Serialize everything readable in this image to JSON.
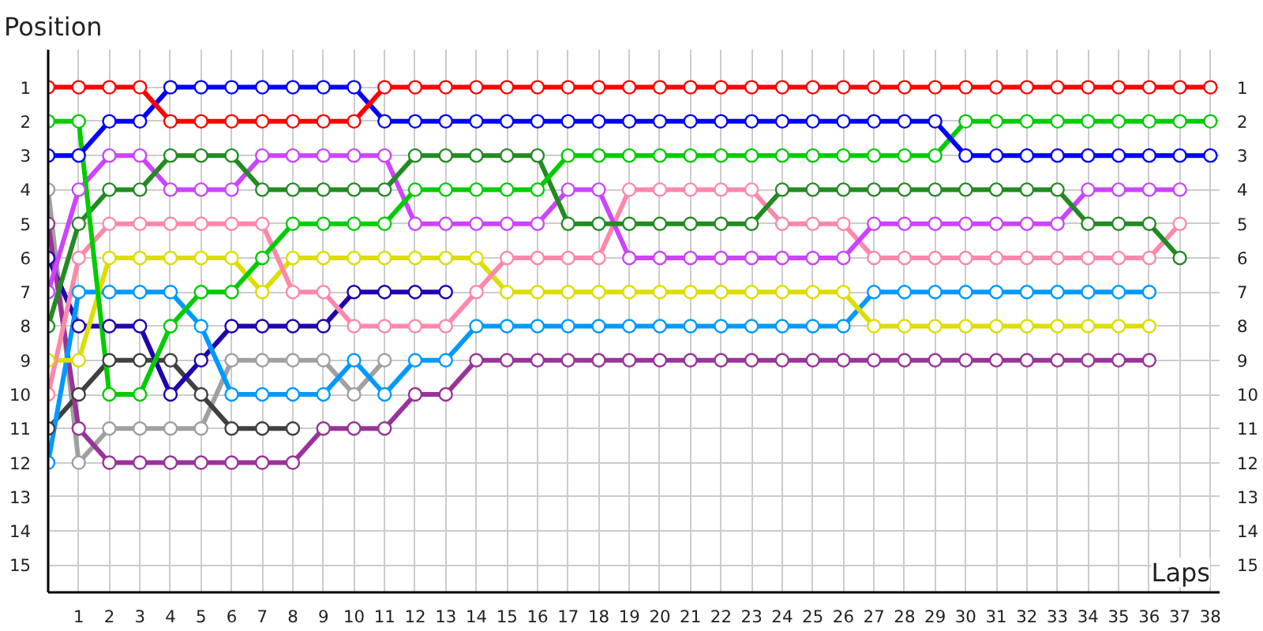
{
  "chart_data": {
    "type": "line",
    "xlabel": "Laps",
    "ylabel": "Position",
    "x": [
      0,
      1,
      2,
      3,
      4,
      5,
      6,
      7,
      8,
      9,
      10,
      11,
      12,
      13,
      14,
      15,
      16,
      17,
      18,
      19,
      20,
      21,
      22,
      23,
      24,
      25,
      26,
      27,
      28,
      29,
      30,
      31,
      32,
      33,
      34,
      35,
      36,
      37,
      38
    ],
    "xlim": [
      0,
      38.3
    ],
    "xticks": [
      1,
      2,
      3,
      4,
      5,
      6,
      7,
      8,
      9,
      10,
      11,
      12,
      13,
      14,
      15,
      16,
      17,
      18,
      19,
      20,
      21,
      22,
      23,
      24,
      25,
      26,
      27,
      28,
      29,
      30,
      31,
      32,
      33,
      34,
      35,
      36,
      37,
      38
    ],
    "ylim": [
      15.8,
      -0.1
    ],
    "yticks": [
      1,
      2,
      3,
      4,
      5,
      6,
      7,
      8,
      9,
      10,
      11,
      12,
      13,
      14,
      15
    ],
    "y2lim": [
      15.8,
      -0.1
    ],
    "y2ticks": [
      1,
      2,
      3,
      4,
      5,
      6,
      7,
      8,
      9,
      10,
      11,
      12,
      13,
      14,
      15
    ],
    "grid": true,
    "marker": "circle",
    "line_style": "solid",
    "series": [
      {
        "color": "#a0a0a0",
        "values": [
          4,
          12,
          11,
          11,
          11,
          11,
          9,
          9,
          9,
          9,
          10,
          9,
          null,
          null,
          null,
          null,
          null,
          null,
          null,
          null,
          null,
          null,
          null,
          null,
          null,
          null,
          null,
          null,
          null,
          null,
          null,
          null,
          null,
          null,
          null,
          null,
          null,
          null,
          null
        ]
      },
      {
        "color": "#404040",
        "values": [
          11,
          10,
          9,
          9,
          9,
          10,
          11,
          11,
          11,
          null,
          null,
          null,
          null,
          null,
          null,
          null,
          null,
          null,
          null,
          null,
          null,
          null,
          null,
          null,
          null,
          null,
          null,
          null,
          null,
          null,
          null,
          null,
          null,
          null,
          null,
          null,
          null,
          null,
          null
        ]
      },
      {
        "color": "#2200b0",
        "values": [
          6,
          8,
          8,
          8,
          10,
          9,
          8,
          8,
          8,
          8,
          7,
          7,
          7,
          7,
          null,
          null,
          null,
          null,
          null,
          null,
          null,
          null,
          null,
          null,
          null,
          null,
          null,
          null,
          null,
          null,
          null,
          null,
          null,
          null,
          null,
          null,
          null,
          null,
          null
        ]
      },
      {
        "color": "#993399",
        "values": [
          5,
          11,
          12,
          12,
          12,
          12,
          12,
          12,
          12,
          11,
          11,
          11,
          10,
          10,
          9,
          9,
          9,
          9,
          9,
          9,
          9,
          9,
          9,
          9,
          9,
          9,
          9,
          9,
          9,
          9,
          9,
          9,
          9,
          9,
          9,
          9,
          9,
          null,
          null
        ]
      },
      {
        "color": "#0099ff",
        "values": [
          12,
          7,
          7,
          7,
          7,
          8,
          10,
          10,
          10,
          10,
          9,
          10,
          9,
          9,
          8,
          8,
          8,
          8,
          8,
          8,
          8,
          8,
          8,
          8,
          8,
          8,
          8,
          7,
          7,
          7,
          7,
          7,
          7,
          7,
          7,
          7,
          7,
          null,
          null
        ]
      },
      {
        "color": "#dddd00",
        "values": [
          9,
          9,
          6,
          6,
          6,
          6,
          6,
          7,
          6,
          6,
          6,
          6,
          6,
          6,
          6,
          7,
          7,
          7,
          7,
          7,
          7,
          7,
          7,
          7,
          7,
          7,
          7,
          8,
          8,
          8,
          8,
          8,
          8,
          8,
          8,
          8,
          8,
          null,
          null
        ]
      },
      {
        "color": "#ff88aa",
        "values": [
          10,
          6,
          5,
          5,
          5,
          5,
          5,
          5,
          7,
          7,
          8,
          8,
          8,
          8,
          7,
          6,
          6,
          6,
          6,
          4,
          4,
          4,
          4,
          4,
          5,
          5,
          5,
          6,
          6,
          6,
          6,
          6,
          6,
          6,
          6,
          6,
          6,
          5,
          null
        ]
      },
      {
        "color": "#cc44ff",
        "values": [
          7,
          4,
          3,
          3,
          4,
          4,
          4,
          3,
          3,
          3,
          3,
          3,
          5,
          5,
          5,
          5,
          5,
          4,
          4,
          6,
          6,
          6,
          6,
          6,
          6,
          6,
          6,
          5,
          5,
          5,
          5,
          5,
          5,
          5,
          4,
          4,
          4,
          4,
          null
        ]
      },
      {
        "color": "#228b22",
        "values": [
          8,
          5,
          4,
          4,
          3,
          3,
          3,
          4,
          4,
          4,
          4,
          4,
          3,
          3,
          3,
          3,
          3,
          5,
          5,
          5,
          5,
          5,
          5,
          5,
          4,
          4,
          4,
          4,
          4,
          4,
          4,
          4,
          4,
          4,
          5,
          5,
          5,
          6,
          null
        ]
      },
      {
        "color": "#00cc00",
        "values": [
          2,
          2,
          10,
          10,
          8,
          7,
          7,
          6,
          5,
          5,
          5,
          5,
          4,
          4,
          4,
          4,
          4,
          3,
          3,
          3,
          3,
          3,
          3,
          3,
          3,
          3,
          3,
          3,
          3,
          3,
          2,
          2,
          2,
          2,
          2,
          2,
          2,
          2,
          2
        ]
      },
      {
        "color": "#0000ff",
        "values": [
          3,
          3,
          2,
          2,
          1,
          1,
          1,
          1,
          1,
          1,
          1,
          2,
          2,
          2,
          2,
          2,
          2,
          2,
          2,
          2,
          2,
          2,
          2,
          2,
          2,
          2,
          2,
          2,
          2,
          2,
          3,
          3,
          3,
          3,
          3,
          3,
          3,
          3,
          3
        ]
      },
      {
        "color": "#ff0000",
        "values": [
          1,
          1,
          1,
          1,
          2,
          2,
          2,
          2,
          2,
          2,
          2,
          1,
          1,
          1,
          1,
          1,
          1,
          1,
          1,
          1,
          1,
          1,
          1,
          1,
          1,
          1,
          1,
          1,
          1,
          1,
          1,
          1,
          1,
          1,
          1,
          1,
          1,
          1,
          1
        ]
      }
    ]
  }
}
